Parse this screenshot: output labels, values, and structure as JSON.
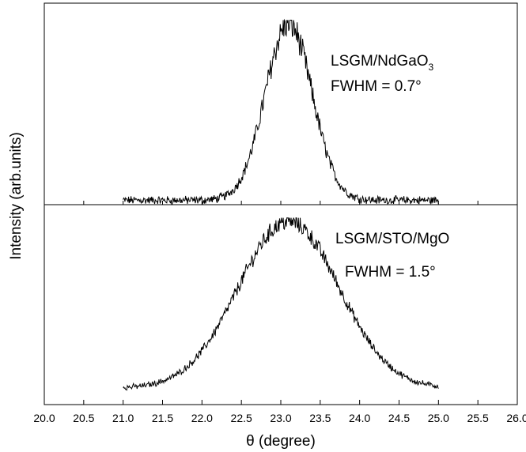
{
  "chart_data": {
    "type": "line",
    "xlabel": "θ (degree)",
    "ylabel": "Intensity (arb.units)",
    "xlim": [
      20.0,
      26.0
    ],
    "xticks": [
      "20.0",
      "20.5",
      "21.0",
      "21.5",
      "22.0",
      "22.5",
      "23.0",
      "23.5",
      "24.0",
      "24.5",
      "25.0",
      "25.5",
      "26.0"
    ],
    "grid": false,
    "panels": [
      {
        "label_main": "LSGM/NdGaO",
        "label_sub": "3",
        "fwhm": "FWHM = 0.7°",
        "x_range": [
          21.0,
          25.0
        ],
        "center": 23.1,
        "width": 0.7,
        "baseline": 0.02,
        "noise": 0.08
      },
      {
        "label_main": "LSGM/STO/MgO",
        "label_sub": "",
        "fwhm": "FWHM = 1.5°",
        "x_range": [
          21.0,
          25.0
        ],
        "center": 23.1,
        "width": 1.5,
        "baseline": 0.04,
        "noise": 0.05
      }
    ]
  }
}
